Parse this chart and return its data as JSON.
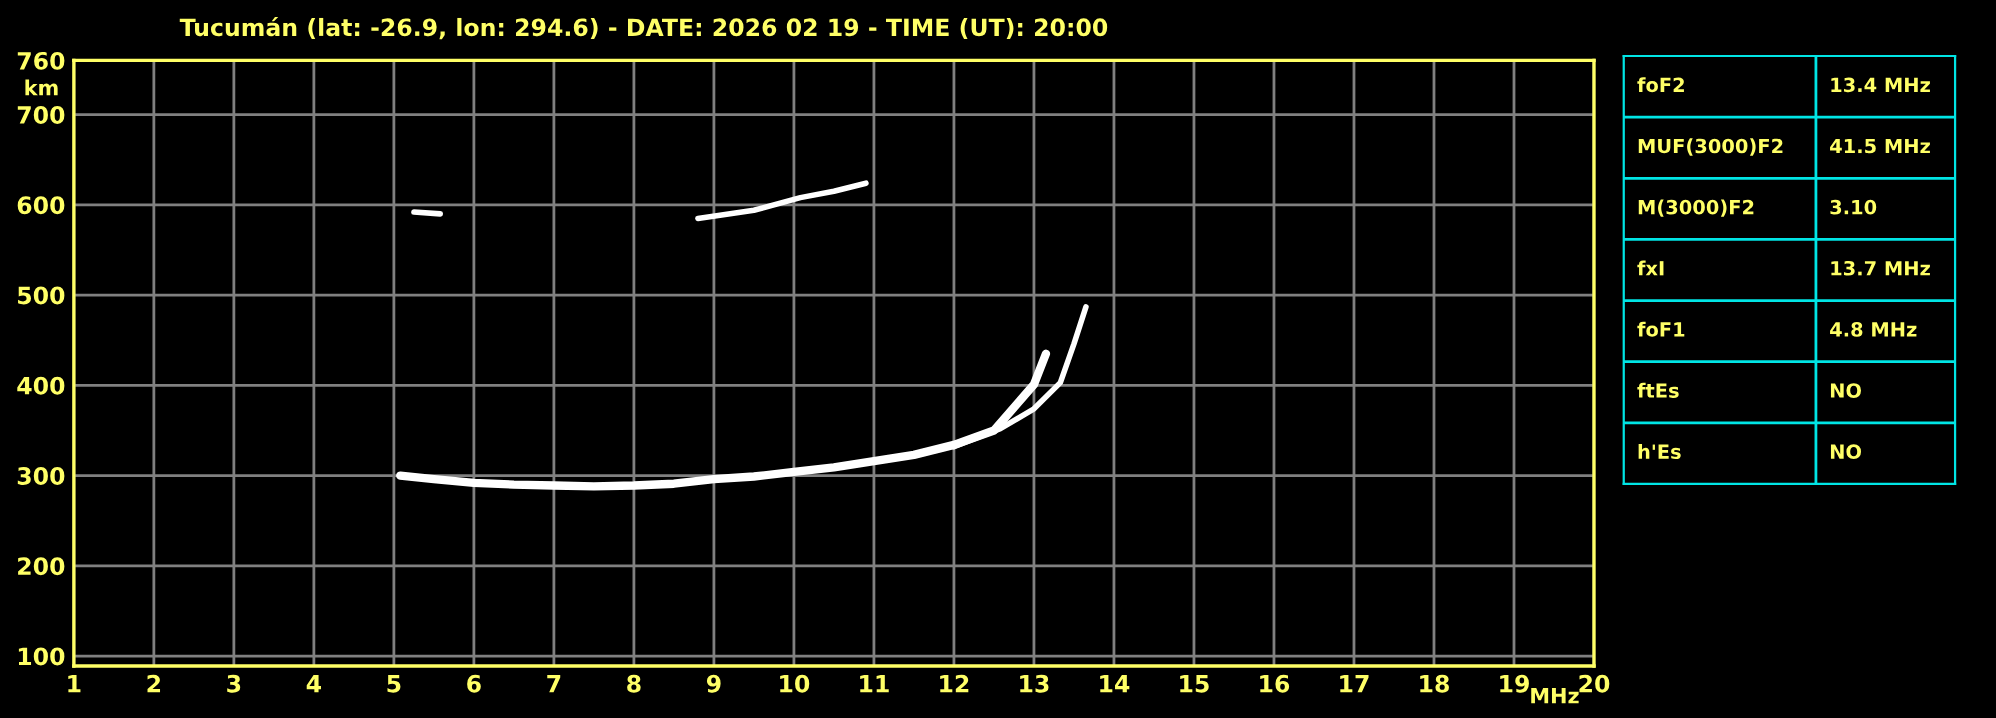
{
  "chart_data": [
    {
      "type": "line",
      "title": "Tucumán (lat: -26.9, lon: 294.6) - DATE: 2026 02 19 - TIME (UT): 20:00",
      "xlabel": "MHz",
      "ylabel": "km",
      "xlim": [
        1,
        20
      ],
      "ylim": [
        89,
        760
      ],
      "xticks": [
        1,
        2,
        3,
        4,
        5,
        6,
        7,
        8,
        9,
        10,
        11,
        12,
        13,
        14,
        15,
        16,
        17,
        18,
        19,
        20
      ],
      "yticks": [
        100,
        200,
        300,
        400,
        500,
        600,
        700,
        760
      ],
      "grid": true,
      "legend": false,
      "series": [
        {
          "color": "#ffffff",
          "x": [
            5.08,
            5.5,
            6.0,
            6.5,
            7.0,
            7.5,
            8.0,
            8.5,
            9.0,
            9.5,
            10.0,
            10.5,
            11.0,
            11.5,
            12.0,
            12.5,
            13.0,
            13.15
          ],
          "values": [
            300,
            296,
            292,
            290,
            289,
            288,
            289,
            291,
            296,
            299,
            304,
            309,
            316,
            323,
            334,
            350,
            401,
            435
          ]
        },
        {
          "color": "#ffffff",
          "x": [
            12.0,
            12.58,
            13.0,
            13.33,
            13.5,
            13.65
          ],
          "values": [
            332,
            352,
            374,
            403,
            446,
            487
          ]
        },
        {
          "color": "#ffffff",
          "x": [
            5.25,
            5.58,
            8.2,
            8.8,
            9.5,
            10.08,
            10.5,
            10.9
          ],
          "values": [
            592,
            590,
            null,
            585,
            594,
            608,
            615,
            624
          ]
        }
      ]
    },
    {
      "type": "other",
      "annotations": [
        "foF2",
        "13.4 MHz",
        "MUF(3000)F2",
        "41.5 MHz",
        "M(3000)F2",
        "3.10",
        "fxI",
        "13.7 MHz",
        "foF1",
        "4.8 MHz",
        "ftEs",
        "NO",
        "h'Es",
        "NO"
      ]
    }
  ]
}
